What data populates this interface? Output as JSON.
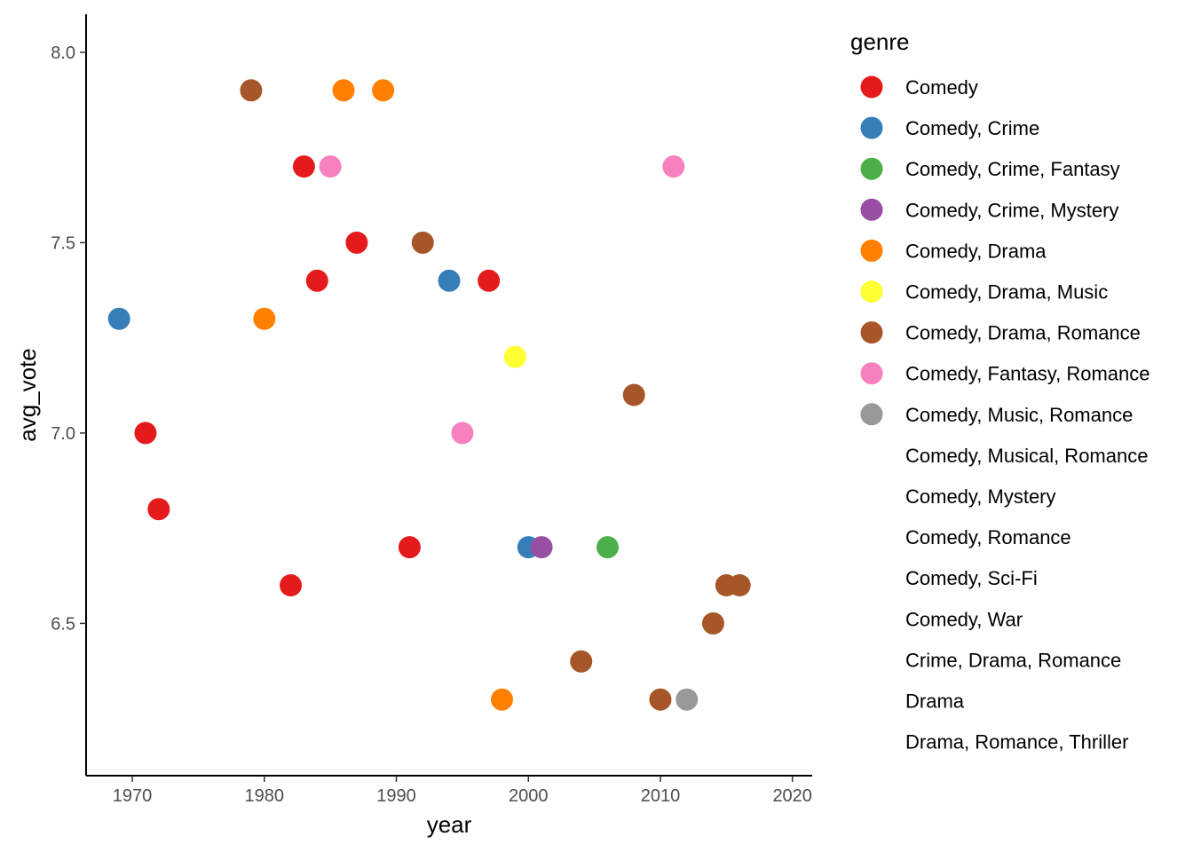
{
  "chart_data": {
    "type": "scatter",
    "xlabel": "year",
    "ylabel": "avg_vote",
    "xlim": [
      1966.5,
      2021.5
    ],
    "ylim": [
      6.1,
      8.1
    ],
    "x_ticks": [
      1970,
      1980,
      1990,
      2000,
      2010,
      2020
    ],
    "x_tick_labels": [
      "1970",
      "1980",
      "1990",
      "2000",
      "2010",
      "2020"
    ],
    "y_ticks": [
      6.5,
      7.0,
      7.5,
      8.0
    ],
    "y_tick_labels": [
      "6.5",
      "7.0",
      "7.5",
      "8.0"
    ],
    "grid": false,
    "legend": {
      "title": "genre",
      "placement": "right",
      "entries": [
        {
          "label": "Comedy",
          "color": "#E41A1C"
        },
        {
          "label": "Comedy, Crime",
          "color": "#377EB8"
        },
        {
          "label": "Comedy, Crime, Fantasy",
          "color": "#4DAF4A"
        },
        {
          "label": "Comedy, Crime, Mystery",
          "color": "#984EA3"
        },
        {
          "label": "Comedy, Drama",
          "color": "#FF7F00"
        },
        {
          "label": "Comedy, Drama, Music",
          "color": "#FFFF33"
        },
        {
          "label": "Comedy, Drama, Romance",
          "color": "#A65628"
        },
        {
          "label": "Comedy, Fantasy, Romance",
          "color": "#F781BF"
        },
        {
          "label": "Comedy, Music, Romance",
          "color": "#999999"
        },
        {
          "label": "Comedy, Musical, Romance",
          "color": null
        },
        {
          "label": "Comedy, Mystery",
          "color": null
        },
        {
          "label": "Comedy, Romance",
          "color": null
        },
        {
          "label": "Comedy, Sci-Fi",
          "color": null
        },
        {
          "label": "Comedy, War",
          "color": null
        },
        {
          "label": "Crime, Drama, Romance",
          "color": null
        },
        {
          "label": "Drama",
          "color": null
        },
        {
          "label": "Drama, Romance, Thriller",
          "color": null
        }
      ]
    },
    "points": [
      {
        "x": 1969,
        "y": 7.3,
        "genre": "Comedy, Crime"
      },
      {
        "x": 1971,
        "y": 7.0,
        "genre": "Comedy"
      },
      {
        "x": 1972,
        "y": 6.8,
        "genre": "Comedy"
      },
      {
        "x": 1979,
        "y": 7.9,
        "genre": "Comedy, Drama, Romance"
      },
      {
        "x": 1980,
        "y": 7.3,
        "genre": "Comedy, Drama"
      },
      {
        "x": 1982,
        "y": 6.6,
        "genre": "Comedy"
      },
      {
        "x": 1983,
        "y": 7.7,
        "genre": "Comedy"
      },
      {
        "x": 1984,
        "y": 7.4,
        "genre": "Comedy"
      },
      {
        "x": 1985,
        "y": 7.7,
        "genre": "Comedy, Fantasy, Romance"
      },
      {
        "x": 1986,
        "y": 7.9,
        "genre": "Comedy, Drama"
      },
      {
        "x": 1987,
        "y": 7.5,
        "genre": "Comedy"
      },
      {
        "x": 1989,
        "y": 7.9,
        "genre": "Comedy, Drama"
      },
      {
        "x": 1991,
        "y": 6.7,
        "genre": "Comedy"
      },
      {
        "x": 1992,
        "y": 7.5,
        "genre": "Comedy, Drama, Romance"
      },
      {
        "x": 1994,
        "y": 7.4,
        "genre": "Comedy, Crime"
      },
      {
        "x": 1995,
        "y": 7.0,
        "genre": "Comedy, Fantasy, Romance"
      },
      {
        "x": 1997,
        "y": 7.4,
        "genre": "Comedy"
      },
      {
        "x": 1998,
        "y": 6.3,
        "genre": "Comedy, Drama"
      },
      {
        "x": 1999,
        "y": 7.2,
        "genre": "Comedy, Drama, Music"
      },
      {
        "x": 2000,
        "y": 6.7,
        "genre": "Comedy, Crime"
      },
      {
        "x": 2001,
        "y": 6.7,
        "genre": "Comedy, Crime, Mystery"
      },
      {
        "x": 2004,
        "y": 6.4,
        "genre": "Comedy, Drama, Romance"
      },
      {
        "x": 2006,
        "y": 6.7,
        "genre": "Comedy, Crime, Fantasy"
      },
      {
        "x": 2008,
        "y": 7.1,
        "genre": "Comedy, Drama, Romance"
      },
      {
        "x": 2010,
        "y": 6.3,
        "genre": "Comedy, Drama, Romance"
      },
      {
        "x": 2011,
        "y": 7.7,
        "genre": "Comedy, Fantasy, Romance"
      },
      {
        "x": 2012,
        "y": 6.3,
        "genre": "Comedy, Music, Romance"
      },
      {
        "x": 2014,
        "y": 6.5,
        "genre": "Comedy, Drama, Romance"
      },
      {
        "x": 2015,
        "y": 6.6,
        "genre": "Comedy, Drama, Romance"
      },
      {
        "x": 2016,
        "y": 6.6,
        "genre": "Comedy, Drama, Romance"
      }
    ]
  }
}
